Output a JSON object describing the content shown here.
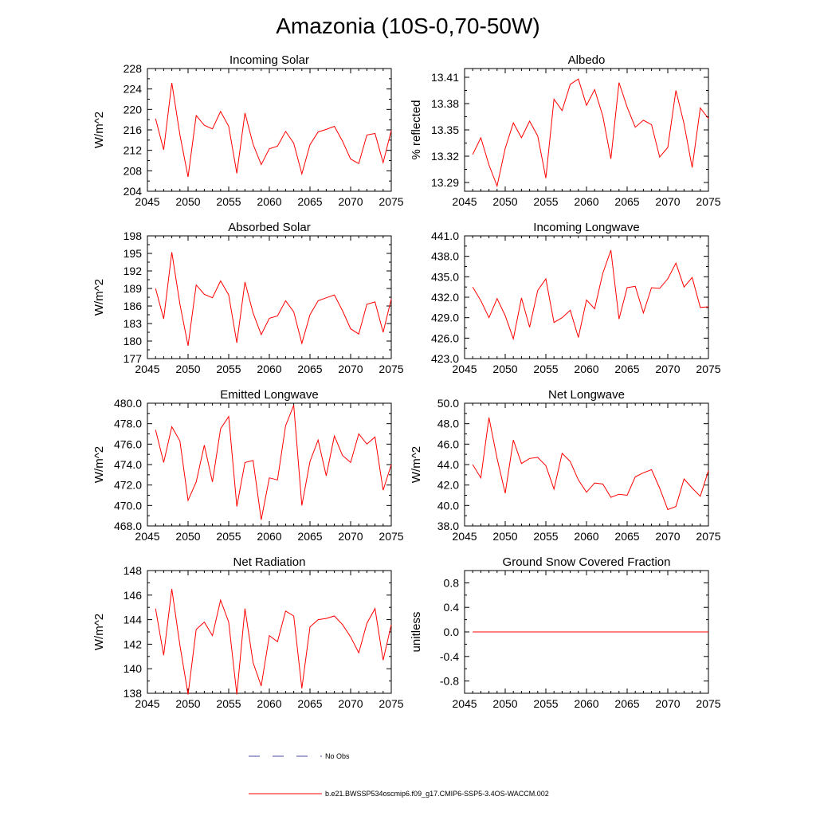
{
  "figure": {
    "title": "Amazonia (10S-0,70-50W)",
    "line_color": "#ff0000",
    "obs_color": "#4a4aa0"
  },
  "legend": {
    "obs_label": "No Obs",
    "model_label": "b.e21.BWSSP534oscmip6.f09_g17.CMIP6-SSP5-3.4OS-WACCM.002"
  },
  "chart_data": [
    {
      "type": "line",
      "title": "Incoming Solar",
      "ylabel": "W/m^2",
      "xlim": [
        2045,
        2075
      ],
      "ylim": [
        204,
        228
      ],
      "x_ticks": [
        "2045",
        "2050",
        "2055",
        "2060",
        "2065",
        "2070",
        "2075"
      ],
      "y_ticks": [
        "204",
        "208",
        "212",
        "216",
        "220",
        "224",
        "228"
      ],
      "x": [
        2046,
        2047,
        2048,
        2049,
        2050,
        2051,
        2052,
        2053,
        2054,
        2055,
        2056,
        2057,
        2058,
        2059,
        2060,
        2061,
        2062,
        2063,
        2064,
        2065,
        2066,
        2067,
        2068,
        2069,
        2070,
        2071,
        2072,
        2073,
        2074,
        2075
      ],
      "values": [
        218.2,
        212.1,
        225.2,
        215.0,
        206.8,
        218.8,
        216.9,
        216.2,
        219.6,
        216.7,
        207.5,
        219.3,
        213.2,
        209.2,
        212.3,
        212.8,
        215.7,
        213.4,
        207.4,
        213.1,
        215.6,
        216.1,
        216.7,
        213.8,
        210.3,
        209.4,
        215.0,
        215.3,
        209.6,
        215.9
      ]
    },
    {
      "type": "line",
      "title": "Albedo",
      "ylabel": "% reflected",
      "xlim": [
        2045,
        2075
      ],
      "ylim": [
        13.28,
        13.42
      ],
      "x_ticks": [
        "2045",
        "2050",
        "2055",
        "2060",
        "2065",
        "2070",
        "2075"
      ],
      "y_ticks": [
        "13.29",
        "13.32",
        "13.35",
        "13.38",
        "13.41"
      ],
      "x": [
        2046,
        2047,
        2048,
        2049,
        2050,
        2051,
        2052,
        2053,
        2054,
        2055,
        2056,
        2057,
        2058,
        2059,
        2060,
        2061,
        2062,
        2063,
        2064,
        2065,
        2066,
        2067,
        2068,
        2069,
        2070,
        2071,
        2072,
        2073,
        2074,
        2075
      ],
      "values": [
        13.322,
        13.341,
        13.31,
        13.286,
        13.329,
        13.358,
        13.341,
        13.36,
        13.343,
        13.295,
        13.385,
        13.372,
        13.402,
        13.408,
        13.378,
        13.396,
        13.366,
        13.317,
        13.404,
        13.376,
        13.353,
        13.361,
        13.356,
        13.319,
        13.33,
        13.395,
        13.357,
        13.307,
        13.375,
        13.363
      ]
    },
    {
      "type": "line",
      "title": "Absorbed Solar",
      "ylabel": "W/m^2",
      "xlim": [
        2045,
        2075
      ],
      "ylim": [
        177,
        198
      ],
      "x_ticks": [
        "2045",
        "2050",
        "2055",
        "2060",
        "2065",
        "2070",
        "2075"
      ],
      "y_ticks": [
        "177",
        "180",
        "183",
        "186",
        "189",
        "192",
        "195",
        "198"
      ],
      "x": [
        2046,
        2047,
        2048,
        2049,
        2050,
        2051,
        2052,
        2053,
        2054,
        2055,
        2056,
        2057,
        2058,
        2059,
        2060,
        2061,
        2062,
        2063,
        2064,
        2065,
        2066,
        2067,
        2068,
        2069,
        2070,
        2071,
        2072,
        2073,
        2074,
        2075
      ],
      "values": [
        189.0,
        183.8,
        195.2,
        186.3,
        179.2,
        189.6,
        188.0,
        187.4,
        190.3,
        187.9,
        179.7,
        190.1,
        184.8,
        181.1,
        183.9,
        184.3,
        186.9,
        185.0,
        179.6,
        184.5,
        186.9,
        187.4,
        187.9,
        185.2,
        182.1,
        181.2,
        186.3,
        186.7,
        181.5,
        187.2
      ]
    },
    {
      "type": "line",
      "title": "Incoming Longwave",
      "ylabel": "",
      "xlim": [
        2045,
        2075
      ],
      "ylim": [
        423,
        441
      ],
      "x_ticks": [
        "2045",
        "2050",
        "2055",
        "2060",
        "2065",
        "2070",
        "2075"
      ],
      "y_ticks": [
        "423.0",
        "426.0",
        "429.0",
        "432.0",
        "435.0",
        "438.0",
        "441.0"
      ],
      "x": [
        2046,
        2047,
        2048,
        2049,
        2050,
        2051,
        2052,
        2053,
        2054,
        2055,
        2056,
        2057,
        2058,
        2059,
        2060,
        2061,
        2062,
        2063,
        2064,
        2065,
        2066,
        2067,
        2068,
        2069,
        2070,
        2071,
        2072,
        2073,
        2074,
        2075
      ],
      "values": [
        433.5,
        431.5,
        429.0,
        431.8,
        429.3,
        425.9,
        431.9,
        427.6,
        433.0,
        434.7,
        428.3,
        429.0,
        430.1,
        426.1,
        431.6,
        430.3,
        435.5,
        438.9,
        428.8,
        433.4,
        433.6,
        429.7,
        433.4,
        433.3,
        434.7,
        437.0,
        433.5,
        434.9,
        430.5,
        430.6
      ]
    },
    {
      "type": "line",
      "title": "Emitted Longwave",
      "ylabel": "W/m^2",
      "xlim": [
        2045,
        2075
      ],
      "ylim": [
        468,
        480
      ],
      "x_ticks": [
        "2045",
        "2050",
        "2055",
        "2060",
        "2065",
        "2070",
        "2075"
      ],
      "y_ticks": [
        "468.0",
        "470.0",
        "472.0",
        "474.0",
        "476.0",
        "478.0",
        "480.0"
      ],
      "x": [
        2046,
        2047,
        2048,
        2049,
        2050,
        2051,
        2052,
        2053,
        2054,
        2055,
        2056,
        2057,
        2058,
        2059,
        2060,
        2061,
        2062,
        2063,
        2064,
        2065,
        2066,
        2067,
        2068,
        2069,
        2070,
        2071,
        2072,
        2073,
        2074,
        2075
      ],
      "values": [
        477.4,
        474.2,
        477.7,
        476.3,
        470.5,
        472.3,
        475.9,
        472.3,
        477.5,
        478.7,
        469.9,
        474.2,
        474.4,
        468.6,
        472.7,
        472.5,
        477.8,
        479.8,
        470.0,
        474.3,
        476.4,
        472.9,
        476.8,
        474.9,
        474.2,
        477.0,
        476.0,
        476.7,
        471.5,
        474.0
      ]
    },
    {
      "type": "line",
      "title": "Net Longwave",
      "ylabel": "W/m^2",
      "xlim": [
        2045,
        2075
      ],
      "ylim": [
        38,
        50
      ],
      "x_ticks": [
        "2045",
        "2050",
        "2055",
        "2060",
        "2065",
        "2070",
        "2075"
      ],
      "y_ticks": [
        "38.0",
        "40.0",
        "42.0",
        "44.0",
        "46.0",
        "48.0",
        "50.0"
      ],
      "x": [
        2046,
        2047,
        2048,
        2049,
        2050,
        2051,
        2052,
        2053,
        2054,
        2055,
        2056,
        2057,
        2058,
        2059,
        2060,
        2061,
        2062,
        2063,
        2064,
        2065,
        2066,
        2067,
        2068,
        2069,
        2070,
        2071,
        2072,
        2073,
        2074,
        2075
      ],
      "values": [
        44.0,
        42.7,
        48.6,
        44.6,
        41.2,
        46.4,
        44.1,
        44.6,
        44.7,
        43.9,
        41.6,
        45.1,
        44.3,
        42.5,
        41.3,
        42.2,
        42.1,
        40.8,
        41.1,
        41.0,
        42.8,
        43.2,
        43.5,
        41.7,
        39.6,
        39.9,
        42.6,
        41.7,
        40.9,
        43.4
      ]
    },
    {
      "type": "line",
      "title": "Net Radiation",
      "ylabel": "W/m^2",
      "xlim": [
        2045,
        2075
      ],
      "ylim": [
        138,
        148
      ],
      "x_ticks": [
        "2045",
        "2050",
        "2055",
        "2060",
        "2065",
        "2070",
        "2075"
      ],
      "y_ticks": [
        "138",
        "140",
        "142",
        "144",
        "146",
        "148"
      ],
      "x": [
        2046,
        2047,
        2048,
        2049,
        2050,
        2051,
        2052,
        2053,
        2054,
        2055,
        2056,
        2057,
        2058,
        2059,
        2060,
        2061,
        2062,
        2063,
        2064,
        2065,
        2066,
        2067,
        2068,
        2069,
        2070,
        2071,
        2072,
        2073,
        2074,
        2075
      ],
      "values": [
        144.9,
        141.1,
        146.5,
        141.9,
        137.9,
        143.2,
        143.8,
        142.7,
        145.6,
        143.8,
        137.9,
        144.9,
        140.5,
        138.6,
        142.7,
        142.2,
        144.7,
        144.3,
        138.4,
        143.4,
        144.0,
        144.1,
        144.3,
        143.6,
        142.6,
        141.3,
        143.7,
        144.9,
        140.7,
        143.6
      ]
    },
    {
      "type": "line",
      "title": "Ground Snow Covered Fraction",
      "ylabel": "unitless",
      "xlim": [
        2045,
        2075
      ],
      "ylim": [
        -1.0,
        1.0
      ],
      "x_ticks": [
        "2045",
        "2050",
        "2055",
        "2060",
        "2065",
        "2070",
        "2075"
      ],
      "y_ticks": [
        "-0.8",
        "-0.4",
        "0.0",
        "0.4",
        "0.8"
      ],
      "x": [
        2046,
        2047,
        2048,
        2049,
        2050,
        2051,
        2052,
        2053,
        2054,
        2055,
        2056,
        2057,
        2058,
        2059,
        2060,
        2061,
        2062,
        2063,
        2064,
        2065,
        2066,
        2067,
        2068,
        2069,
        2070,
        2071,
        2072,
        2073,
        2074,
        2075
      ],
      "values": [
        0,
        0,
        0,
        0,
        0,
        0,
        0,
        0,
        0,
        0,
        0,
        0,
        0,
        0,
        0,
        0,
        0,
        0,
        0,
        0,
        0,
        0,
        0,
        0,
        0,
        0,
        0,
        0,
        0,
        0
      ]
    }
  ]
}
